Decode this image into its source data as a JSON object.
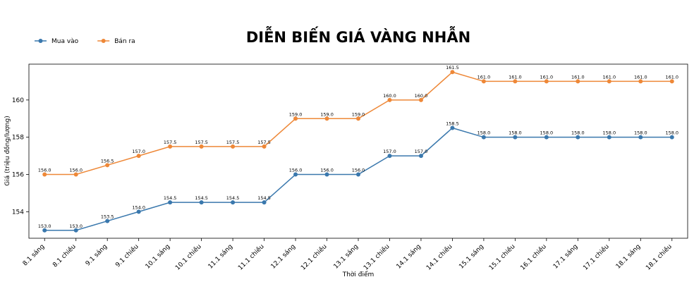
{
  "chart_data": {
    "type": "line",
    "title": "DIỄN BIẾN GIÁ VÀNG NHẪN",
    "xlabel": "Thời điểm",
    "ylabel": "Giá (triệu đồng/lượng)",
    "categories": [
      "8.1 sáng",
      "8.1 chiều",
      "9.1 sáng",
      "9.1 chiều",
      "10.1 sáng",
      "10.1 chiều",
      "11.1 sáng",
      "11.1 chiều",
      "12.1 sáng",
      "12.1 chiều",
      "13.1 sáng",
      "13.1 chiều",
      "14.1 sáng",
      "14.1 chiều",
      "15.1 sáng",
      "15.1 chiều",
      "16.1 chiều",
      "17.1 sáng",
      "17.1 chiều",
      "18.1 sáng",
      "18.1 chiều"
    ],
    "series": [
      {
        "name": "Mua vào",
        "color": "#3a78ad",
        "values": [
          153,
          153,
          153.5,
          154,
          154.5,
          154.5,
          154.5,
          154.5,
          156,
          156,
          156,
          157,
          157,
          158.5,
          158,
          158,
          158,
          158,
          158,
          158,
          158
        ],
        "value_labels": [
          "153.0",
          "153.0",
          "153.5",
          "154.0",
          "154.5",
          "154.5",
          "154.5",
          "154.5",
          "156.0",
          "156.0",
          "156.0",
          "157.0",
          "157.0",
          "158.5",
          "158.0",
          "158.0",
          "158.0",
          "158.0",
          "158.0",
          "158.0",
          "158.0"
        ]
      },
      {
        "name": "Bán ra",
        "color": "#ee8838",
        "values": [
          156,
          156,
          156.5,
          157,
          157.5,
          157.5,
          157.5,
          157.5,
          159,
          159,
          159,
          160,
          160,
          161.5,
          161,
          161,
          161,
          161,
          161,
          161,
          161
        ],
        "value_labels": [
          "156.0",
          "156.0",
          "156.5",
          "157.0",
          "157.5",
          "157.5",
          "157.5",
          "157.5",
          "159.0",
          "159.0",
          "159.0",
          "160.0",
          "160.0",
          "161.5",
          "161.0",
          "161.0",
          "161.0",
          "161.0",
          "161.0",
          "161.0",
          "161.0"
        ]
      }
    ],
    "ylim": [
      152.575,
      161.925
    ],
    "yticks": [
      154,
      156,
      158,
      160
    ],
    "legend_position": "upper left",
    "grid": false
  }
}
